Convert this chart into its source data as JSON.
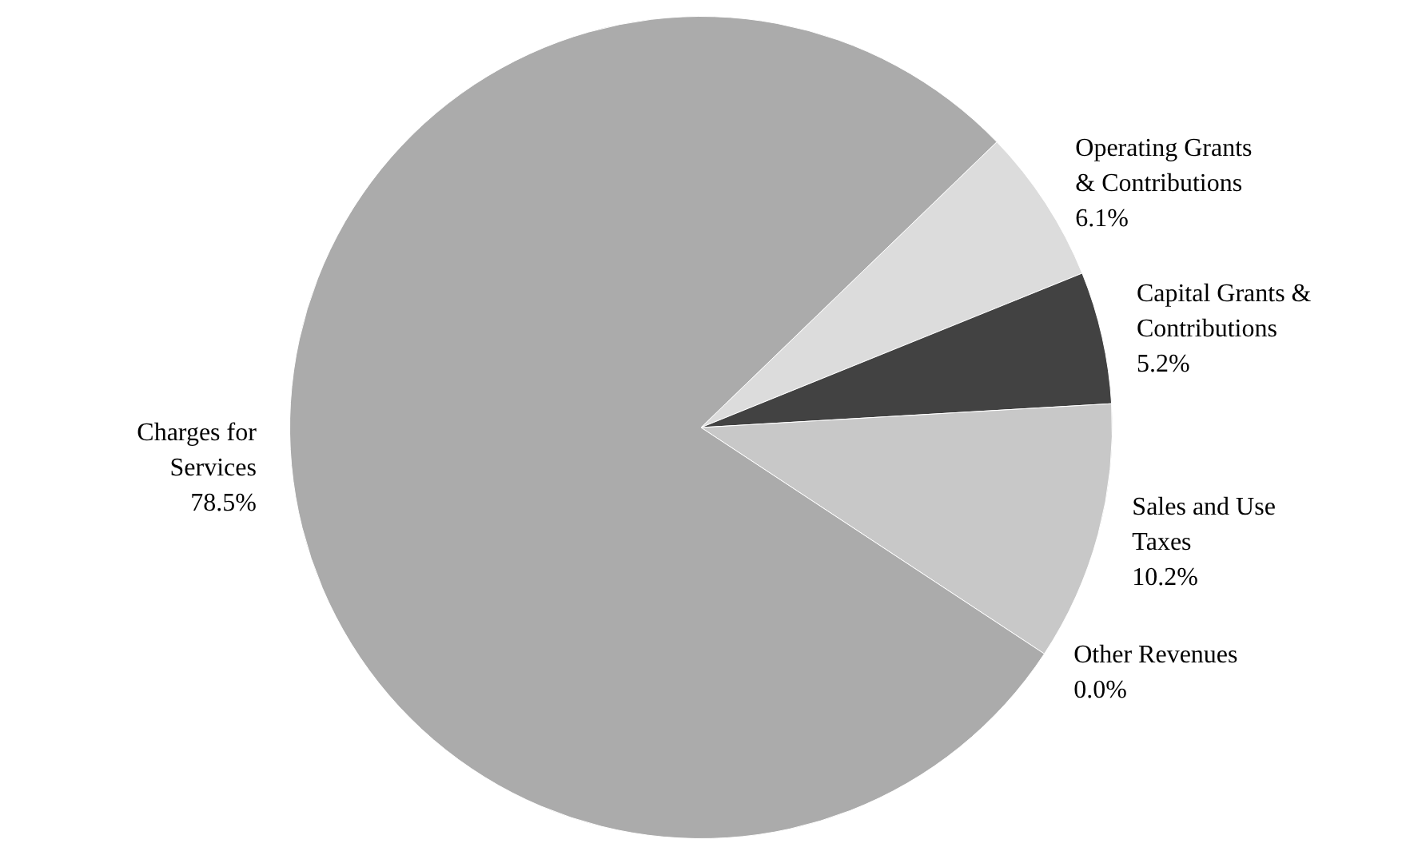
{
  "chart_data": {
    "type": "pie",
    "categories": [
      "Operating Grants & Contributions",
      "Capital Grants & Contributions",
      "Sales and Use Taxes",
      "Other Revenues",
      "Charges for Services"
    ],
    "values": [
      6.1,
      5.2,
      10.2,
      0.0,
      78.5
    ],
    "value_labels": [
      "6.1%",
      "5.2%",
      "10.2%",
      "0.0%",
      "78.5%"
    ],
    "colors": [
      "#dcdcdc",
      "#424242",
      "#c8c8c8",
      "#bdbdbd",
      "#ababab"
    ],
    "legend": false
  }
}
